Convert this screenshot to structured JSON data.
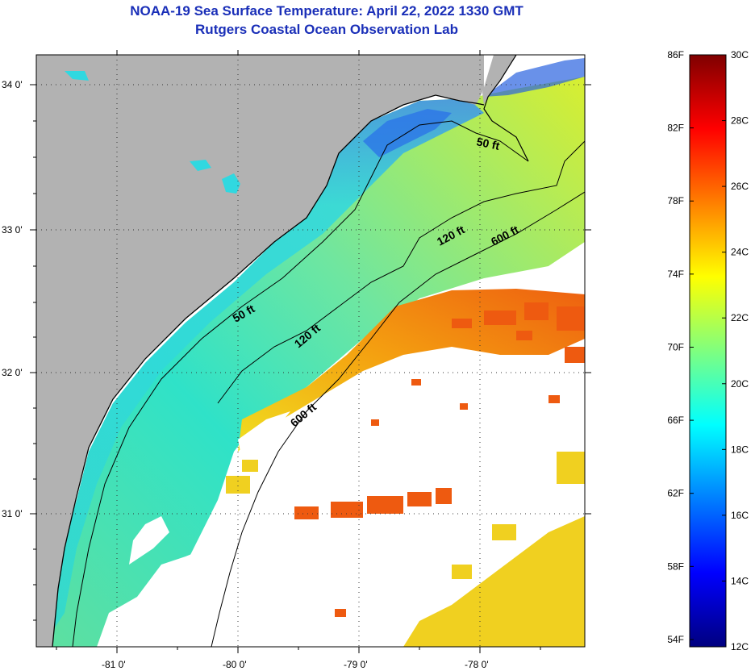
{
  "title": "NOAA-19 Sea Surface Temperature:  April 22, 2022 1330 GMT",
  "subtitle": "Rutgers Coastal Ocean Observation Lab",
  "map": {
    "lat_labels": [
      "34 0'",
      "33 0'",
      "32 0'",
      "31 0'"
    ],
    "lon_labels": [
      "-81 0'",
      "-80 0'",
      "-79 0'",
      "-78 0'"
    ],
    "contour_labels": [
      "50 ft",
      "120 ft",
      "600 ft",
      "50 ft",
      "120 ft",
      "600 ft"
    ],
    "colors": {
      "land": "#b2b2b2",
      "cloud": "#ffffff",
      "coast": "#000000",
      "cold": "#1e5fe0",
      "cool": "#22e0d0",
      "mid": "#9be870",
      "warm": "#f0e020",
      "hot": "#f06010"
    }
  },
  "colorbar": {
    "fahrenheit_labels": [
      "86F",
      "82F",
      "78F",
      "74F",
      "70F",
      "66F",
      "62F",
      "58F",
      "54F"
    ],
    "celsius_labels": [
      "30C",
      "28C",
      "26C",
      "24C",
      "22C",
      "20C",
      "18C",
      "16C",
      "14C",
      "12C"
    ],
    "range_c": [
      12,
      30
    ],
    "range_f": [
      54,
      86
    ],
    "color_stops": [
      "#00007f",
      "#0000ff",
      "#007fff",
      "#00ffff",
      "#7fff7f",
      "#ffff00",
      "#ff7f00",
      "#ff0000",
      "#7f0000"
    ]
  }
}
